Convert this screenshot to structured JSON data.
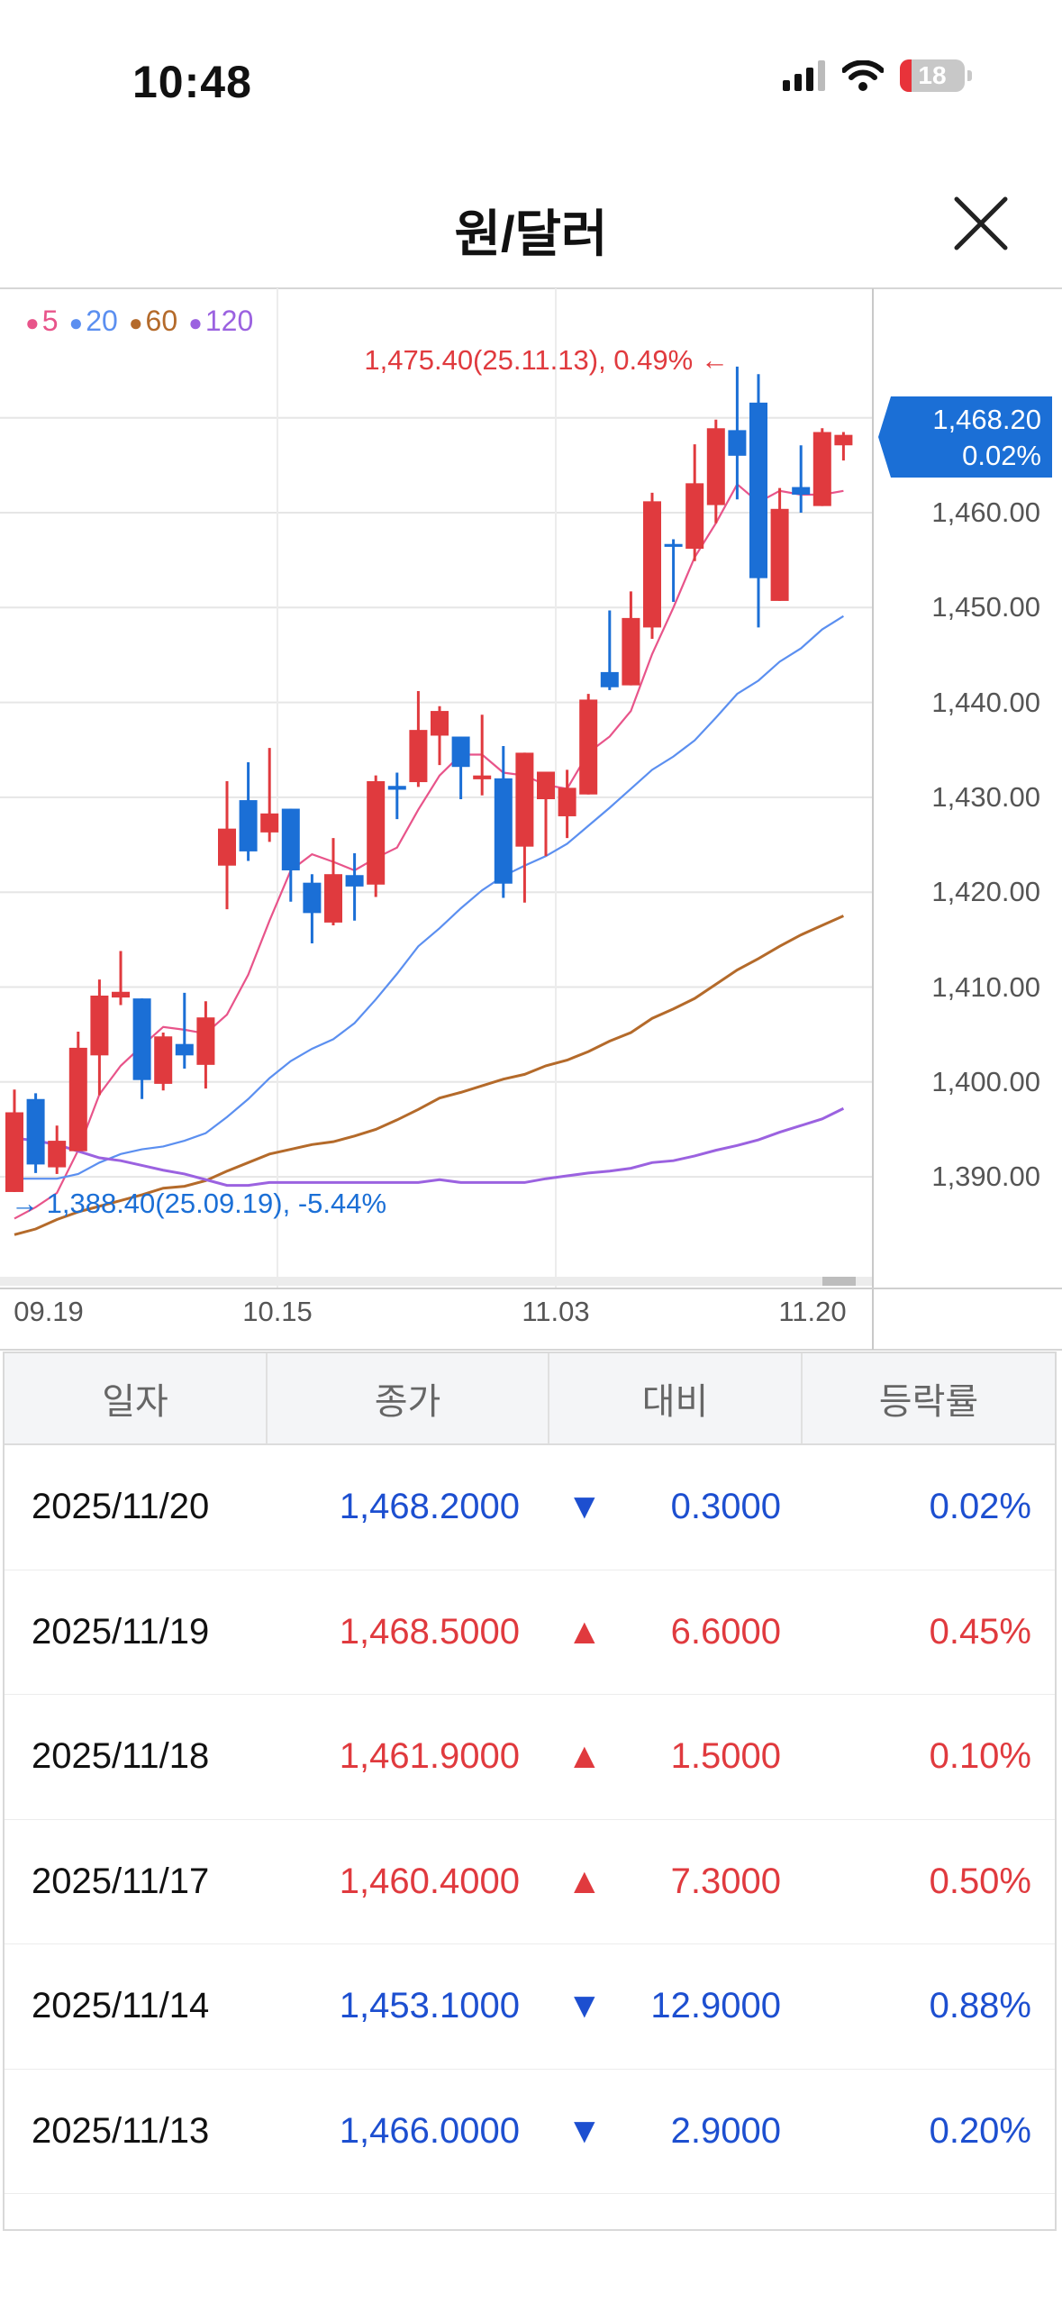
{
  "status_bar": {
    "time": "10:48",
    "battery": "18",
    "icons": [
      "cellular-signal-icon",
      "wifi-icon",
      "battery-icon"
    ]
  },
  "header": {
    "title": "원/달러",
    "close_icon": "close-icon"
  },
  "colors": {
    "up": "#e03a3e",
    "down": "#1b6fd6",
    "ma5": "#e8548a",
    "ma20": "#5b8ff0",
    "ma60": "#b46a2a",
    "ma120": "#9b62e0",
    "tag": "#1b6fd6"
  },
  "legend": [
    {
      "label": "5",
      "color": "#e8548a"
    },
    {
      "label": "20",
      "color": "#5b8ff0"
    },
    {
      "label": "60",
      "color": "#b46a2a"
    },
    {
      "label": "120",
      "color": "#9b62e0"
    }
  ],
  "price_tag": {
    "price": "1,468.20",
    "pct": "0.02%"
  },
  "max_marker": {
    "text": "1,475.40(25.11.13), 0.49% ←",
    "value": 1475.4,
    "index": 34
  },
  "min_marker": {
    "text": "→ 1,388.40(25.09.19), -5.44%",
    "value": 1388.4,
    "index": 0
  },
  "chart_data": {
    "type": "candlestick",
    "ylim": [
      1380,
      1480
    ],
    "grid": true,
    "y_ticks": [
      {
        "value": 1460,
        "label": "1,460.00"
      },
      {
        "value": 1450,
        "label": "1,450.00"
      },
      {
        "value": 1440,
        "label": "1,440.00"
      },
      {
        "value": 1430,
        "label": "1,430.00"
      },
      {
        "value": 1420,
        "label": "1,420.00"
      },
      {
        "value": 1410,
        "label": "1,410.00"
      },
      {
        "value": 1400,
        "label": "1,400.00"
      },
      {
        "value": 1390,
        "label": "1,390.00"
      }
    ],
    "x_ticks": [
      {
        "label": "09.19",
        "index": 0
      },
      {
        "label": "10.15",
        "index": 13
      },
      {
        "label": "11.03",
        "index": 26
      },
      {
        "label": "11.20",
        "index": 39
      }
    ],
    "candles": [
      [
        1388.4,
        1399.2,
        1388.4,
        1396.8
      ],
      [
        1398.2,
        1398.8,
        1390.4,
        1391.3
      ],
      [
        1391.0,
        1395.4,
        1390.3,
        1393.8
      ],
      [
        1392.7,
        1405.3,
        1392.7,
        1403.6
      ],
      [
        1402.8,
        1410.8,
        1398.6,
        1409.1
      ],
      [
        1408.9,
        1413.8,
        1408.1,
        1409.5
      ],
      [
        1408.8,
        1408.8,
        1398.2,
        1400.2
      ],
      [
        1399.8,
        1405.2,
        1399.1,
        1404.8
      ],
      [
        1404.0,
        1409.4,
        1401.4,
        1402.8
      ],
      [
        1401.8,
        1408.5,
        1399.3,
        1406.8
      ],
      [
        1422.8,
        1431.7,
        1418.2,
        1426.7
      ],
      [
        1429.7,
        1433.7,
        1423.3,
        1424.3
      ],
      [
        1426.3,
        1435.2,
        1425.3,
        1428.3
      ],
      [
        1428.8,
        1428.8,
        1419.0,
        1422.3
      ],
      [
        1421.0,
        1421.9,
        1414.6,
        1417.8
      ],
      [
        1416.8,
        1425.7,
        1416.5,
        1421.9
      ],
      [
        1421.8,
        1424.1,
        1417.0,
        1420.6
      ],
      [
        1420.8,
        1432.3,
        1419.5,
        1431.7
      ],
      [
        1431.2,
        1432.6,
        1427.7,
        1430.8
      ],
      [
        1431.6,
        1441.2,
        1431.1,
        1437.1
      ],
      [
        1436.5,
        1439.6,
        1433.4,
        1439.1
      ],
      [
        1436.4,
        1436.4,
        1429.8,
        1433.2
      ],
      [
        1431.9,
        1438.7,
        1430.2,
        1432.3
      ],
      [
        1432.0,
        1435.4,
        1419.4,
        1420.9
      ],
      [
        1424.8,
        1434.7,
        1418.9,
        1434.7
      ],
      [
        1429.8,
        1432.7,
        1423.8,
        1432.7
      ],
      [
        1428.0,
        1432.9,
        1425.7,
        1431.0
      ],
      [
        1430.3,
        1440.9,
        1430.3,
        1440.3
      ],
      [
        1443.2,
        1449.7,
        1441.3,
        1441.6
      ],
      [
        1441.8,
        1451.7,
        1441.8,
        1448.9
      ],
      [
        1447.9,
        1462.1,
        1446.7,
        1461.2
      ],
      [
        1456.7,
        1457.2,
        1450.6,
        1456.4
      ],
      [
        1456.2,
        1467.2,
        1454.9,
        1463.1
      ],
      [
        1460.8,
        1469.8,
        1458.9,
        1468.9
      ],
      [
        1468.7,
        1475.4,
        1461.4,
        1466.0
      ],
      [
        1471.6,
        1474.6,
        1447.9,
        1453.1
      ],
      [
        1450.7,
        1462.6,
        1450.7,
        1460.4
      ],
      [
        1462.7,
        1467.1,
        1460.0,
        1461.9
      ],
      [
        1460.7,
        1468.9,
        1460.7,
        1468.5
      ],
      [
        1467.1,
        1468.5,
        1465.5,
        1468.2
      ]
    ],
    "series": [
      {
        "name": "5",
        "values": [
          1385.6,
          1386.8,
          1388.3,
          1392.8,
          1398.7,
          1401.7,
          1403.8,
          1405.8,
          1405.5,
          1405.1,
          1407.1,
          1411.3,
          1417.0,
          1422.3,
          1424.0,
          1423.2,
          1422.3,
          1423.6,
          1424.7,
          1428.7,
          1432.3,
          1434.5,
          1434.5,
          1432.6,
          1432.3,
          1431.3,
          1430.9,
          1434.7,
          1436.4,
          1439.1,
          1445.1,
          1450.0,
          1455.3,
          1458.9,
          1463.0,
          1461.1,
          1462.3,
          1461.9,
          1461.9,
          1462.3
        ]
      },
      {
        "name": "20",
        "values": [
          1389.8,
          1389.8,
          1389.8,
          1390.3,
          1391.5,
          1392.4,
          1392.9,
          1393.2,
          1393.8,
          1394.6,
          1396.3,
          1398.2,
          1400.4,
          1402.2,
          1403.5,
          1404.5,
          1406.2,
          1408.7,
          1411.4,
          1414.3,
          1416.2,
          1418.3,
          1420.2,
          1421.7,
          1422.8,
          1423.8,
          1425.1,
          1427.0,
          1428.9,
          1430.9,
          1432.9,
          1434.3,
          1436.0,
          1438.4,
          1440.9,
          1442.3,
          1444.3,
          1445.7,
          1447.7,
          1449.1
        ]
      },
      {
        "name": "60",
        "values": [
          1383.9,
          1384.5,
          1385.5,
          1386.3,
          1386.9,
          1387.5,
          1388.1,
          1388.8,
          1389.0,
          1389.6,
          1390.6,
          1391.5,
          1392.4,
          1392.9,
          1393.4,
          1393.7,
          1394.3,
          1395.0,
          1396.0,
          1397.1,
          1398.3,
          1398.9,
          1399.6,
          1400.3,
          1400.8,
          1401.7,
          1402.3,
          1403.2,
          1404.3,
          1405.2,
          1406.7,
          1407.7,
          1408.8,
          1410.3,
          1411.8,
          1413.0,
          1414.3,
          1415.5,
          1416.5,
          1417.5
        ]
      },
      {
        "name": "120",
        "values": [
          1394.1,
          1393.8,
          1393.4,
          1392.7,
          1392.0,
          1391.7,
          1391.2,
          1390.7,
          1390.3,
          1389.7,
          1389.1,
          1389.1,
          1389.4,
          1389.4,
          1389.4,
          1389.4,
          1389.4,
          1389.4,
          1389.4,
          1389.4,
          1389.7,
          1389.4,
          1389.4,
          1389.4,
          1389.4,
          1389.8,
          1390.1,
          1390.4,
          1390.6,
          1390.9,
          1391.5,
          1391.7,
          1392.2,
          1392.8,
          1393.3,
          1393.9,
          1394.7,
          1395.4,
          1396.1,
          1397.2
        ]
      }
    ]
  },
  "table": {
    "headers": [
      "일자",
      "종가",
      "대비",
      "등락률"
    ],
    "rows": [
      {
        "date": "2025/11/20",
        "close": "1,468.2000",
        "dir": "down",
        "arrow": "▼",
        "change": "0.3000",
        "pct": "0.02%"
      },
      {
        "date": "2025/11/19",
        "close": "1,468.5000",
        "dir": "up",
        "arrow": "▲",
        "change": "6.6000",
        "pct": "0.45%"
      },
      {
        "date": "2025/11/18",
        "close": "1,461.9000",
        "dir": "up",
        "arrow": "▲",
        "change": "1.5000",
        "pct": "0.10%"
      },
      {
        "date": "2025/11/17",
        "close": "1,460.4000",
        "dir": "up",
        "arrow": "▲",
        "change": "7.3000",
        "pct": "0.50%"
      },
      {
        "date": "2025/11/14",
        "close": "1,453.1000",
        "dir": "down",
        "arrow": "▼",
        "change": "12.9000",
        "pct": "0.88%"
      },
      {
        "date": "2025/11/13",
        "close": "1,466.0000",
        "dir": "down",
        "arrow": "▼",
        "change": "2.9000",
        "pct": "0.20%"
      }
    ]
  }
}
